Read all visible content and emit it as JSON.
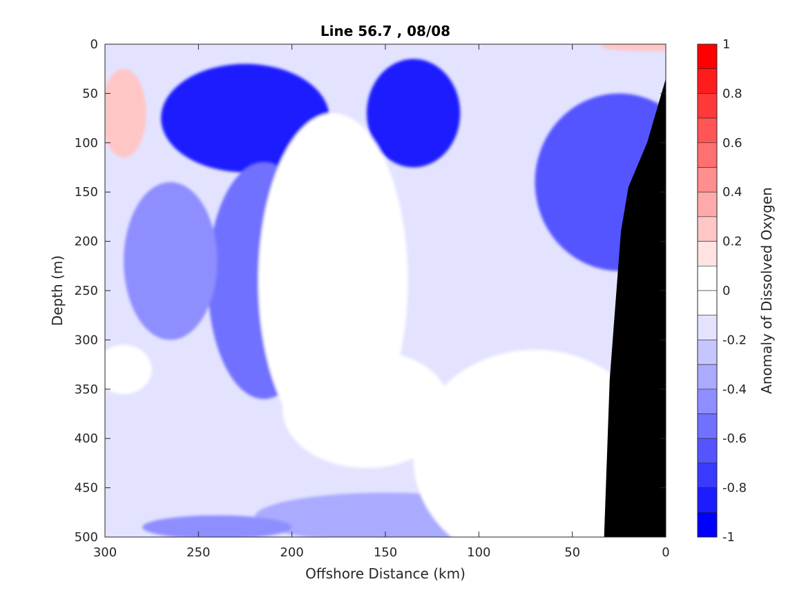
{
  "chart_data": {
    "type": "heatmap",
    "title": "Line 56.7 , 08/08",
    "xlabel": "Offshore Distance (km)",
    "ylabel": "Depth (m)",
    "colorbar_label": "Anomaly of Dissolved Oxygen",
    "xlim": [
      300,
      0
    ],
    "ylim": [
      0,
      500
    ],
    "x_reversed": true,
    "y_reversed": true,
    "x_ticks": [
      300,
      250,
      200,
      150,
      100,
      50,
      0
    ],
    "y_ticks": [
      0,
      50,
      100,
      150,
      200,
      250,
      300,
      350,
      400,
      450,
      500
    ],
    "clim": [
      -1,
      1
    ],
    "colorbar_ticks": [
      1,
      0.8,
      0.6,
      0.4,
      0.2,
      0,
      -0.2,
      -0.4,
      -0.6,
      -0.8,
      -1
    ],
    "levels": [
      {
        "range": [
          0.9,
          1.0
        ],
        "color": "#ff0000"
      },
      {
        "range": [
          0.8,
          0.9
        ],
        "color": "#ff1c1c"
      },
      {
        "range": [
          0.7,
          0.8
        ],
        "color": "#ff3939"
      },
      {
        "range": [
          0.6,
          0.7
        ],
        "color": "#ff5555"
      },
      {
        "range": [
          0.5,
          0.6
        ],
        "color": "#ff7171"
      },
      {
        "range": [
          0.4,
          0.5
        ],
        "color": "#ff8e8e"
      },
      {
        "range": [
          0.3,
          0.4
        ],
        "color": "#ffaaaa"
      },
      {
        "range": [
          0.2,
          0.3
        ],
        "color": "#ffc6c6"
      },
      {
        "range": [
          0.1,
          0.2
        ],
        "color": "#ffe3e3"
      },
      {
        "range": [
          0.0,
          0.1
        ],
        "color": "#ffffff"
      },
      {
        "range": [
          -0.1,
          0.0
        ],
        "color": "#ffffff"
      },
      {
        "range": [
          -0.2,
          -0.1
        ],
        "color": "#e3e3ff"
      },
      {
        "range": [
          -0.3,
          -0.2
        ],
        "color": "#c6c6ff"
      },
      {
        "range": [
          -0.4,
          -0.3
        ],
        "color": "#aaaaff"
      },
      {
        "range": [
          -0.5,
          -0.4
        ],
        "color": "#8e8eff"
      },
      {
        "range": [
          -0.6,
          -0.5
        ],
        "color": "#7171ff"
      },
      {
        "range": [
          -0.7,
          -0.6
        ],
        "color": "#5555ff"
      },
      {
        "range": [
          -0.8,
          -0.7
        ],
        "color": "#3939ff"
      },
      {
        "range": [
          -0.9,
          -0.8
        ],
        "color": "#1c1cff"
      },
      {
        "range": [
          -1.0,
          -0.9
        ],
        "color": "#0000ff"
      }
    ],
    "background_level": -0.15,
    "features": [
      {
        "kind": "blob",
        "x": 225,
        "y": 75,
        "rx": 45,
        "ry": 55,
        "value": -0.85
      },
      {
        "kind": "blob",
        "x": 135,
        "y": 70,
        "rx": 25,
        "ry": 55,
        "value": -0.85
      },
      {
        "kind": "blob",
        "x": 25,
        "y": 140,
        "rx": 45,
        "ry": 90,
        "value": -0.65
      },
      {
        "kind": "blob",
        "x": 215,
        "y": 240,
        "rx": 30,
        "ry": 120,
        "value": -0.6
      },
      {
        "kind": "blob",
        "x": 265,
        "y": 220,
        "rx": 25,
        "ry": 80,
        "value": -0.5
      },
      {
        "kind": "blob",
        "x": 150,
        "y": 480,
        "rx": 70,
        "ry": 25,
        "value": -0.4
      },
      {
        "kind": "blob",
        "x": 240,
        "y": 490,
        "rx": 40,
        "ry": 12,
        "value": -0.45
      },
      {
        "kind": "blob",
        "x": 290,
        "y": 70,
        "rx": 12,
        "ry": 45,
        "value": 0.2
      },
      {
        "kind": "blob",
        "x": 10,
        "y": 2,
        "rx": 25,
        "ry": 5,
        "value": 0.2
      },
      {
        "kind": "blob",
        "x": 178,
        "y": 240,
        "rx": 40,
        "ry": 170,
        "value": 0.0
      },
      {
        "kind": "blob",
        "x": 70,
        "y": 420,
        "rx": 65,
        "ry": 110,
        "value": 0.0
      },
      {
        "kind": "blob",
        "x": 160,
        "y": 370,
        "rx": 45,
        "ry": 60,
        "value": 0.0
      },
      {
        "kind": "blob",
        "x": 290,
        "y": 330,
        "rx": 15,
        "ry": 25,
        "value": 0.0
      }
    ],
    "land_mask": {
      "color": "#000000",
      "boundary": [
        {
          "x": 0,
          "y": 35
        },
        {
          "x": 10,
          "y": 100
        },
        {
          "x": 20,
          "y": 145
        },
        {
          "x": 24,
          "y": 190
        },
        {
          "x": 30,
          "y": 340
        },
        {
          "x": 33,
          "y": 500
        }
      ]
    }
  }
}
